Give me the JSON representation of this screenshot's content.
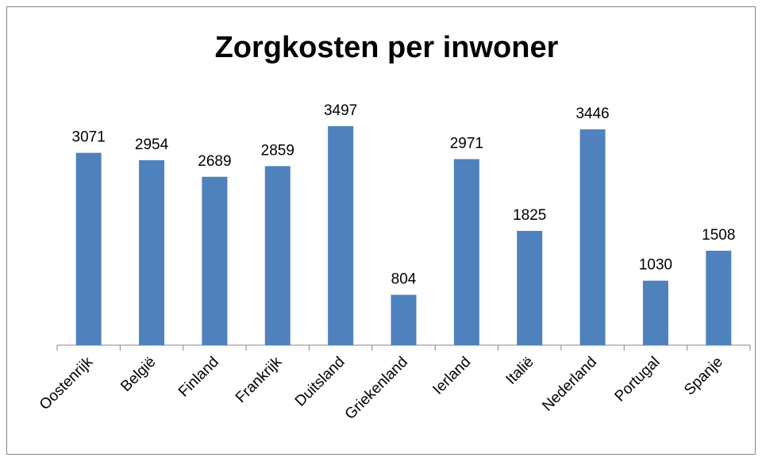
{
  "chart_data": {
    "type": "bar",
    "title": "Zorgkosten per inwoner",
    "categories": [
      "Oostenrijk",
      "België",
      "Finland",
      "Frankrijk",
      "Duitsland",
      "Griekenland",
      "Ierland",
      "Italië",
      "Nederland",
      "Portugal",
      "Spanje"
    ],
    "values": [
      3071,
      2954,
      2689,
      2859,
      3497,
      804,
      2971,
      1825,
      3446,
      1030,
      1508
    ],
    "color": "#4f81bd"
  }
}
